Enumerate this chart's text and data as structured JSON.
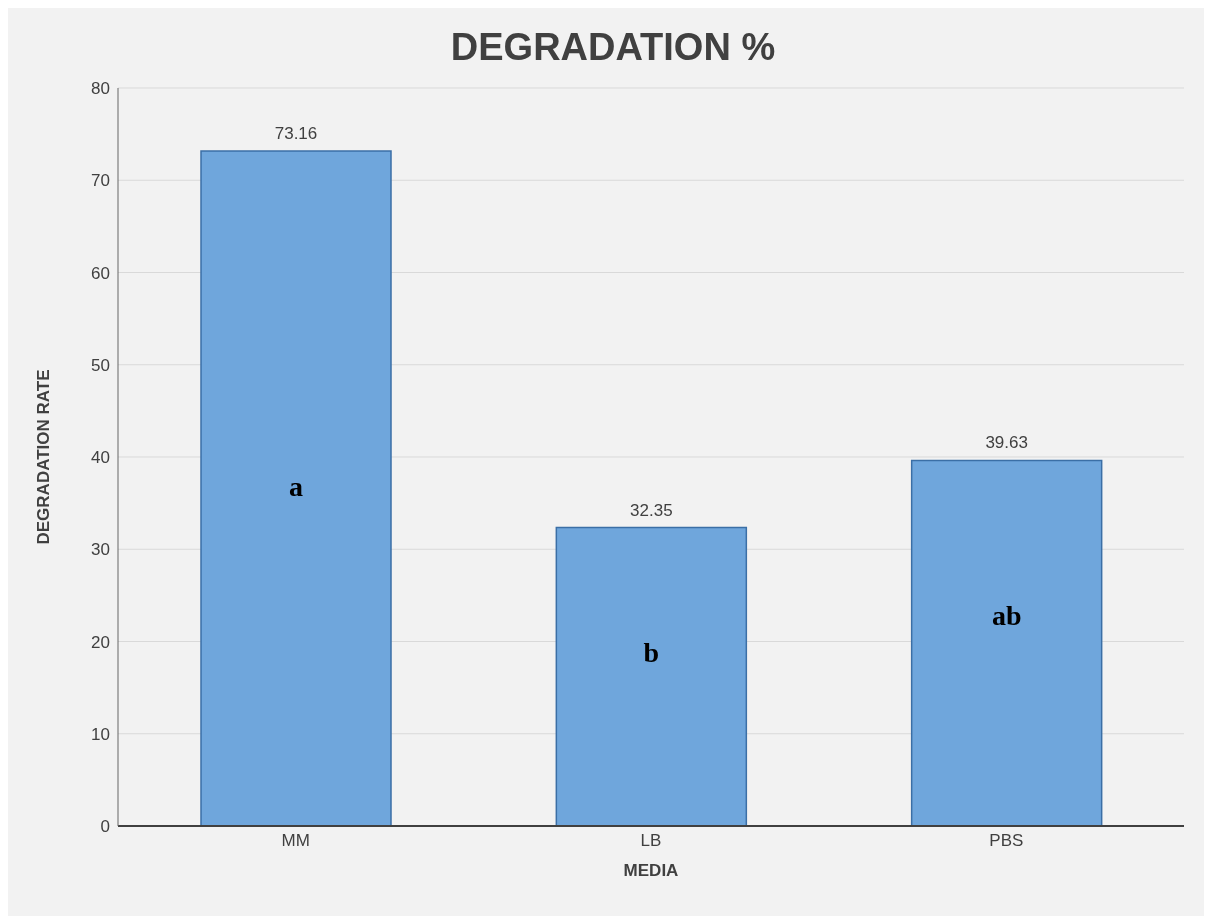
{
  "chart_data": {
    "type": "bar",
    "title": "DEGRADATION %",
    "xlabel": "MEDIA",
    "ylabel": "DEGRADATION RATE",
    "categories": [
      "MM",
      "LB",
      "PBS"
    ],
    "values": [
      73.16,
      32.35,
      39.63
    ],
    "color": "#6fa6dc",
    "ylim": [
      0,
      80
    ],
    "yticks": [
      0,
      10,
      20,
      30,
      40,
      50,
      60,
      70,
      80
    ],
    "grid": "y",
    "data_labels": true,
    "annotations": [
      "a",
      "b",
      "ab"
    ]
  }
}
